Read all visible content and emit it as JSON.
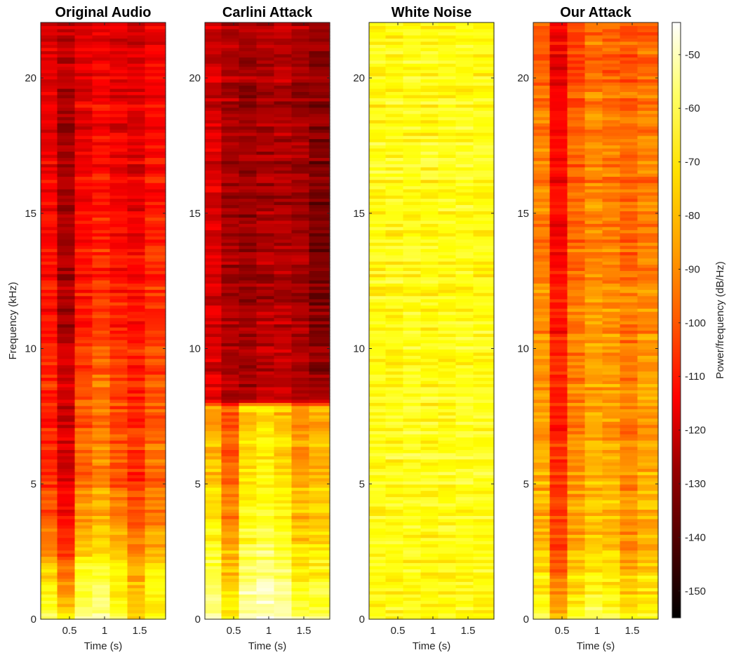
{
  "chart_data": {
    "type": "heatmap",
    "colormap": "hot",
    "colorbar": {
      "label": "Power/frequency (dB/Hz)",
      "range": [
        -155,
        -44
      ],
      "ticks": [
        -50,
        -60,
        -70,
        -80,
        -90,
        -100,
        -110,
        -120,
        -130,
        -140,
        -150
      ]
    },
    "panels": [
      {
        "title": "Original Audio",
        "xlabel": "Time (s)",
        "ylabel": "Frequency (kHz)",
        "xticks": [
          "0.5",
          "1",
          "1.5"
        ],
        "yticks": [
          "0",
          "5",
          "10",
          "15",
          "20"
        ],
        "xlim": [
          0.09,
          1.87
        ],
        "ylim": [
          0,
          22.05
        ],
        "time_bins": [
          0.2,
          0.45,
          0.7,
          0.95,
          1.2,
          1.45,
          1.7
        ],
        "freq_kHz": [
          0,
          1,
          2,
          3,
          5,
          8,
          11,
          14,
          17,
          20,
          22
        ],
        "power_db": [
          [
            -62,
            -75,
            -58,
            -55,
            -62,
            -80,
            -72
          ],
          [
            -72,
            -88,
            -65,
            -60,
            -75,
            -82,
            -70
          ],
          [
            -80,
            -95,
            -70,
            -68,
            -72,
            -85,
            -75
          ],
          [
            -95,
            -110,
            -85,
            -80,
            -88,
            -95,
            -90
          ],
          [
            -105,
            -118,
            -95,
            -90,
            -98,
            -105,
            -95
          ],
          [
            -108,
            -122,
            -100,
            -95,
            -102,
            -108,
            -100
          ],
          [
            -110,
            -126,
            -108,
            -102,
            -108,
            -110,
            -105
          ],
          [
            -112,
            -128,
            -112,
            -108,
            -112,
            -115,
            -108
          ],
          [
            -115,
            -128,
            -115,
            -112,
            -115,
            -118,
            -112
          ],
          [
            -118,
            -126,
            -118,
            -116,
            -118,
            -120,
            -115
          ],
          [
            -120,
            -125,
            -120,
            -118,
            -120,
            -122,
            -118
          ]
        ]
      },
      {
        "title": "Carlini Attack",
        "xlabel": "Time (s)",
        "xticks": [
          "0.5",
          "1",
          "1.5"
        ],
        "yticks": [
          "0",
          "5",
          "10",
          "15",
          "20"
        ],
        "xlim": [
          0.09,
          1.87
        ],
        "ylim": [
          0,
          22.05
        ],
        "time_bins": [
          0.2,
          0.45,
          0.7,
          0.95,
          1.2,
          1.45,
          1.7
        ],
        "freq_kHz": [
          0,
          1,
          2,
          3,
          5,
          7.9,
          8.1,
          11,
          14,
          17,
          20,
          22
        ],
        "power_db": [
          [
            -52,
            -70,
            -50,
            -48,
            -50,
            -60,
            -62
          ],
          [
            -60,
            -78,
            -55,
            -52,
            -58,
            -70,
            -68
          ],
          [
            -65,
            -82,
            -62,
            -58,
            -62,
            -75,
            -72
          ],
          [
            -72,
            -88,
            -68,
            -65,
            -70,
            -80,
            -78
          ],
          [
            -80,
            -95,
            -75,
            -70,
            -75,
            -85,
            -82
          ],
          [
            -88,
            -100,
            -80,
            -78,
            -82,
            -90,
            -85
          ],
          [
            -118,
            -125,
            -128,
            -122,
            -122,
            -126,
            -130
          ],
          [
            -120,
            -128,
            -130,
            -126,
            -126,
            -128,
            -134
          ],
          [
            -120,
            -130,
            -131,
            -128,
            -128,
            -130,
            -136
          ],
          [
            -120,
            -128,
            -130,
            -128,
            -127,
            -130,
            -134
          ],
          [
            -120,
            -126,
            -128,
            -126,
            -125,
            -128,
            -130
          ],
          [
            -122,
            -126,
            -128,
            -126,
            -125,
            -127,
            -130
          ]
        ]
      },
      {
        "title": "White Noise",
        "xlabel": "Time (s)",
        "xticks": [
          "0.5",
          "1",
          "1.5"
        ],
        "yticks": [
          "0",
          "5",
          "10",
          "15",
          "20"
        ],
        "xlim": [
          0.09,
          1.87
        ],
        "ylim": [
          0,
          22.05
        ],
        "time_bins": [
          0.2,
          0.45,
          0.7,
          0.95,
          1.2,
          1.45,
          1.7
        ],
        "freq_kHz": [
          0,
          5,
          10,
          15,
          20,
          22
        ],
        "power_db": [
          [
            -70,
            -70,
            -69,
            -70,
            -70,
            -69,
            -70
          ],
          [
            -70,
            -70,
            -69,
            -70,
            -70,
            -69,
            -70
          ],
          [
            -70,
            -70,
            -69,
            -70,
            -70,
            -69,
            -70
          ],
          [
            -70,
            -70,
            -69,
            -70,
            -70,
            -69,
            -70
          ],
          [
            -70,
            -70,
            -69,
            -70,
            -70,
            -69,
            -70
          ],
          [
            -70,
            -70,
            -69,
            -70,
            -70,
            -69,
            -70
          ]
        ]
      },
      {
        "title": "Our Attack",
        "xlabel": "Time (s)",
        "xticks": [
          "0.5",
          "1",
          "1.5"
        ],
        "yticks": [
          "0",
          "5",
          "10",
          "15",
          "20"
        ],
        "xlim": [
          0.09,
          1.87
        ],
        "ylim": [
          0,
          22.05
        ],
        "time_bins": [
          0.2,
          0.45,
          0.7,
          0.95,
          1.2,
          1.45,
          1.7
        ],
        "freq_kHz": [
          0,
          1,
          2,
          3,
          5,
          8,
          11,
          14,
          17,
          20,
          22
        ],
        "power_db": [
          [
            -65,
            -82,
            -68,
            -62,
            -65,
            -75,
            -70
          ],
          [
            -72,
            -92,
            -75,
            -68,
            -72,
            -80,
            -75
          ],
          [
            -78,
            -98,
            -82,
            -75,
            -78,
            -85,
            -80
          ],
          [
            -82,
            -102,
            -86,
            -80,
            -82,
            -88,
            -84
          ],
          [
            -85,
            -106,
            -88,
            -84,
            -85,
            -90,
            -86
          ],
          [
            -88,
            -108,
            -92,
            -86,
            -88,
            -92,
            -88
          ],
          [
            -90,
            -110,
            -94,
            -88,
            -90,
            -94,
            -90
          ],
          [
            -92,
            -112,
            -96,
            -90,
            -92,
            -96,
            -92
          ],
          [
            -94,
            -114,
            -98,
            -92,
            -94,
            -97,
            -94
          ],
          [
            -96,
            -115,
            -100,
            -94,
            -96,
            -98,
            -95
          ],
          [
            -98,
            -115,
            -102,
            -96,
            -98,
            -100,
            -97
          ]
        ]
      }
    ]
  }
}
